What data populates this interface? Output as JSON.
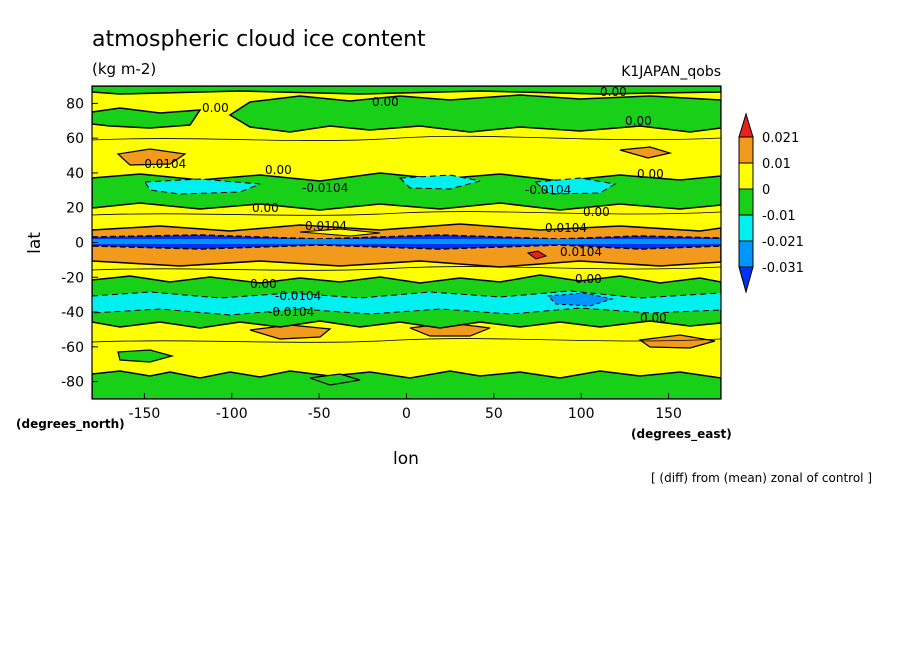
{
  "chart_data": {
    "type": "heatmap",
    "title": "atmospheric cloud ice content",
    "units": "(kg m-2)",
    "dataset": "K1JAPAN_qobs",
    "xlabel": "lon",
    "ylabel": "lat",
    "x_unit": "(degrees_east)",
    "y_unit": "(degrees_north)",
    "note": "[ (diff) from (mean) zonal of control ]",
    "xlim": [
      -180,
      180
    ],
    "ylim": [
      -90,
      90
    ],
    "x_ticks": [
      -150,
      -100,
      -50,
      0,
      50,
      100,
      150
    ],
    "y_ticks": [
      80,
      60,
      40,
      20,
      0,
      -20,
      -40,
      -60,
      -80
    ],
    "x_tick_labels": [
      "-150",
      "-100",
      "-50",
      "0",
      "50",
      "100",
      "150"
    ],
    "y_tick_labels": [
      "80",
      "60",
      "40",
      "20",
      "0",
      "-20",
      "-40",
      "-60",
      "-80"
    ],
    "colorbar": {
      "labels": [
        "0.021",
        "0.01",
        "0",
        "-0.01",
        "-0.021",
        "-0.031"
      ],
      "colors": [
        "#e8201e",
        "#f29a1c",
        "#ffff00",
        "#18d018",
        "#00f0f0",
        "#0096ff",
        "#0032f0"
      ]
    },
    "contour_labels": [
      "0.00",
      "0.00",
      "0.00",
      "0.00",
      "0.00",
      "0.00",
      "0.00",
      "0.00",
      "0.00",
      "0.00",
      "0.00",
      "-0.0104",
      "-0.0104",
      "-0.0104",
      "-0.0104",
      "-0.0104",
      "0.0104",
      "0.0104",
      "0.0104"
    ],
    "fields": {
      "zonal_bands": [
        {
          "lat": [
            -90,
            -72
          ],
          "level": "0",
          "value": 0.0
        },
        {
          "lat": [
            -72,
            -52
          ],
          "level": "0",
          "value": 0.0
        },
        {
          "lat": [
            -52,
            -42
          ],
          "level": "-0.01",
          "value": -0.006
        },
        {
          "lat": [
            -40,
            -26
          ],
          "level": "-0.021",
          "value": -0.016
        },
        {
          "lat": [
            -26,
            -14
          ],
          "level": "-0.01",
          "value": -0.006
        },
        {
          "lat": [
            -14,
            -4
          ],
          "level": "0.01",
          "value": 0.007
        },
        {
          "lat": [
            -2,
            2
          ],
          "level": "-0.031",
          "value": -0.03
        },
        {
          "lat": [
            4,
            10
          ],
          "level": "0.01",
          "value": 0.006
        },
        {
          "lat": [
            24,
            38
          ],
          "level": "-0.01",
          "value": -0.006
        },
        {
          "lat": [
            28,
            36
          ],
          "level": "-0.021",
          "value": -0.013
        },
        {
          "lat": [
            40,
            48
          ],
          "level": "0.01",
          "value": 0.004
        },
        {
          "lat": [
            56,
            80
          ],
          "level": "-0.01",
          "value": -0.004
        }
      ],
      "max_region": {
        "lon": [
          65,
          80
        ],
        "lat": [
          -8,
          -4
        ],
        "level": "0.021"
      }
    }
  }
}
